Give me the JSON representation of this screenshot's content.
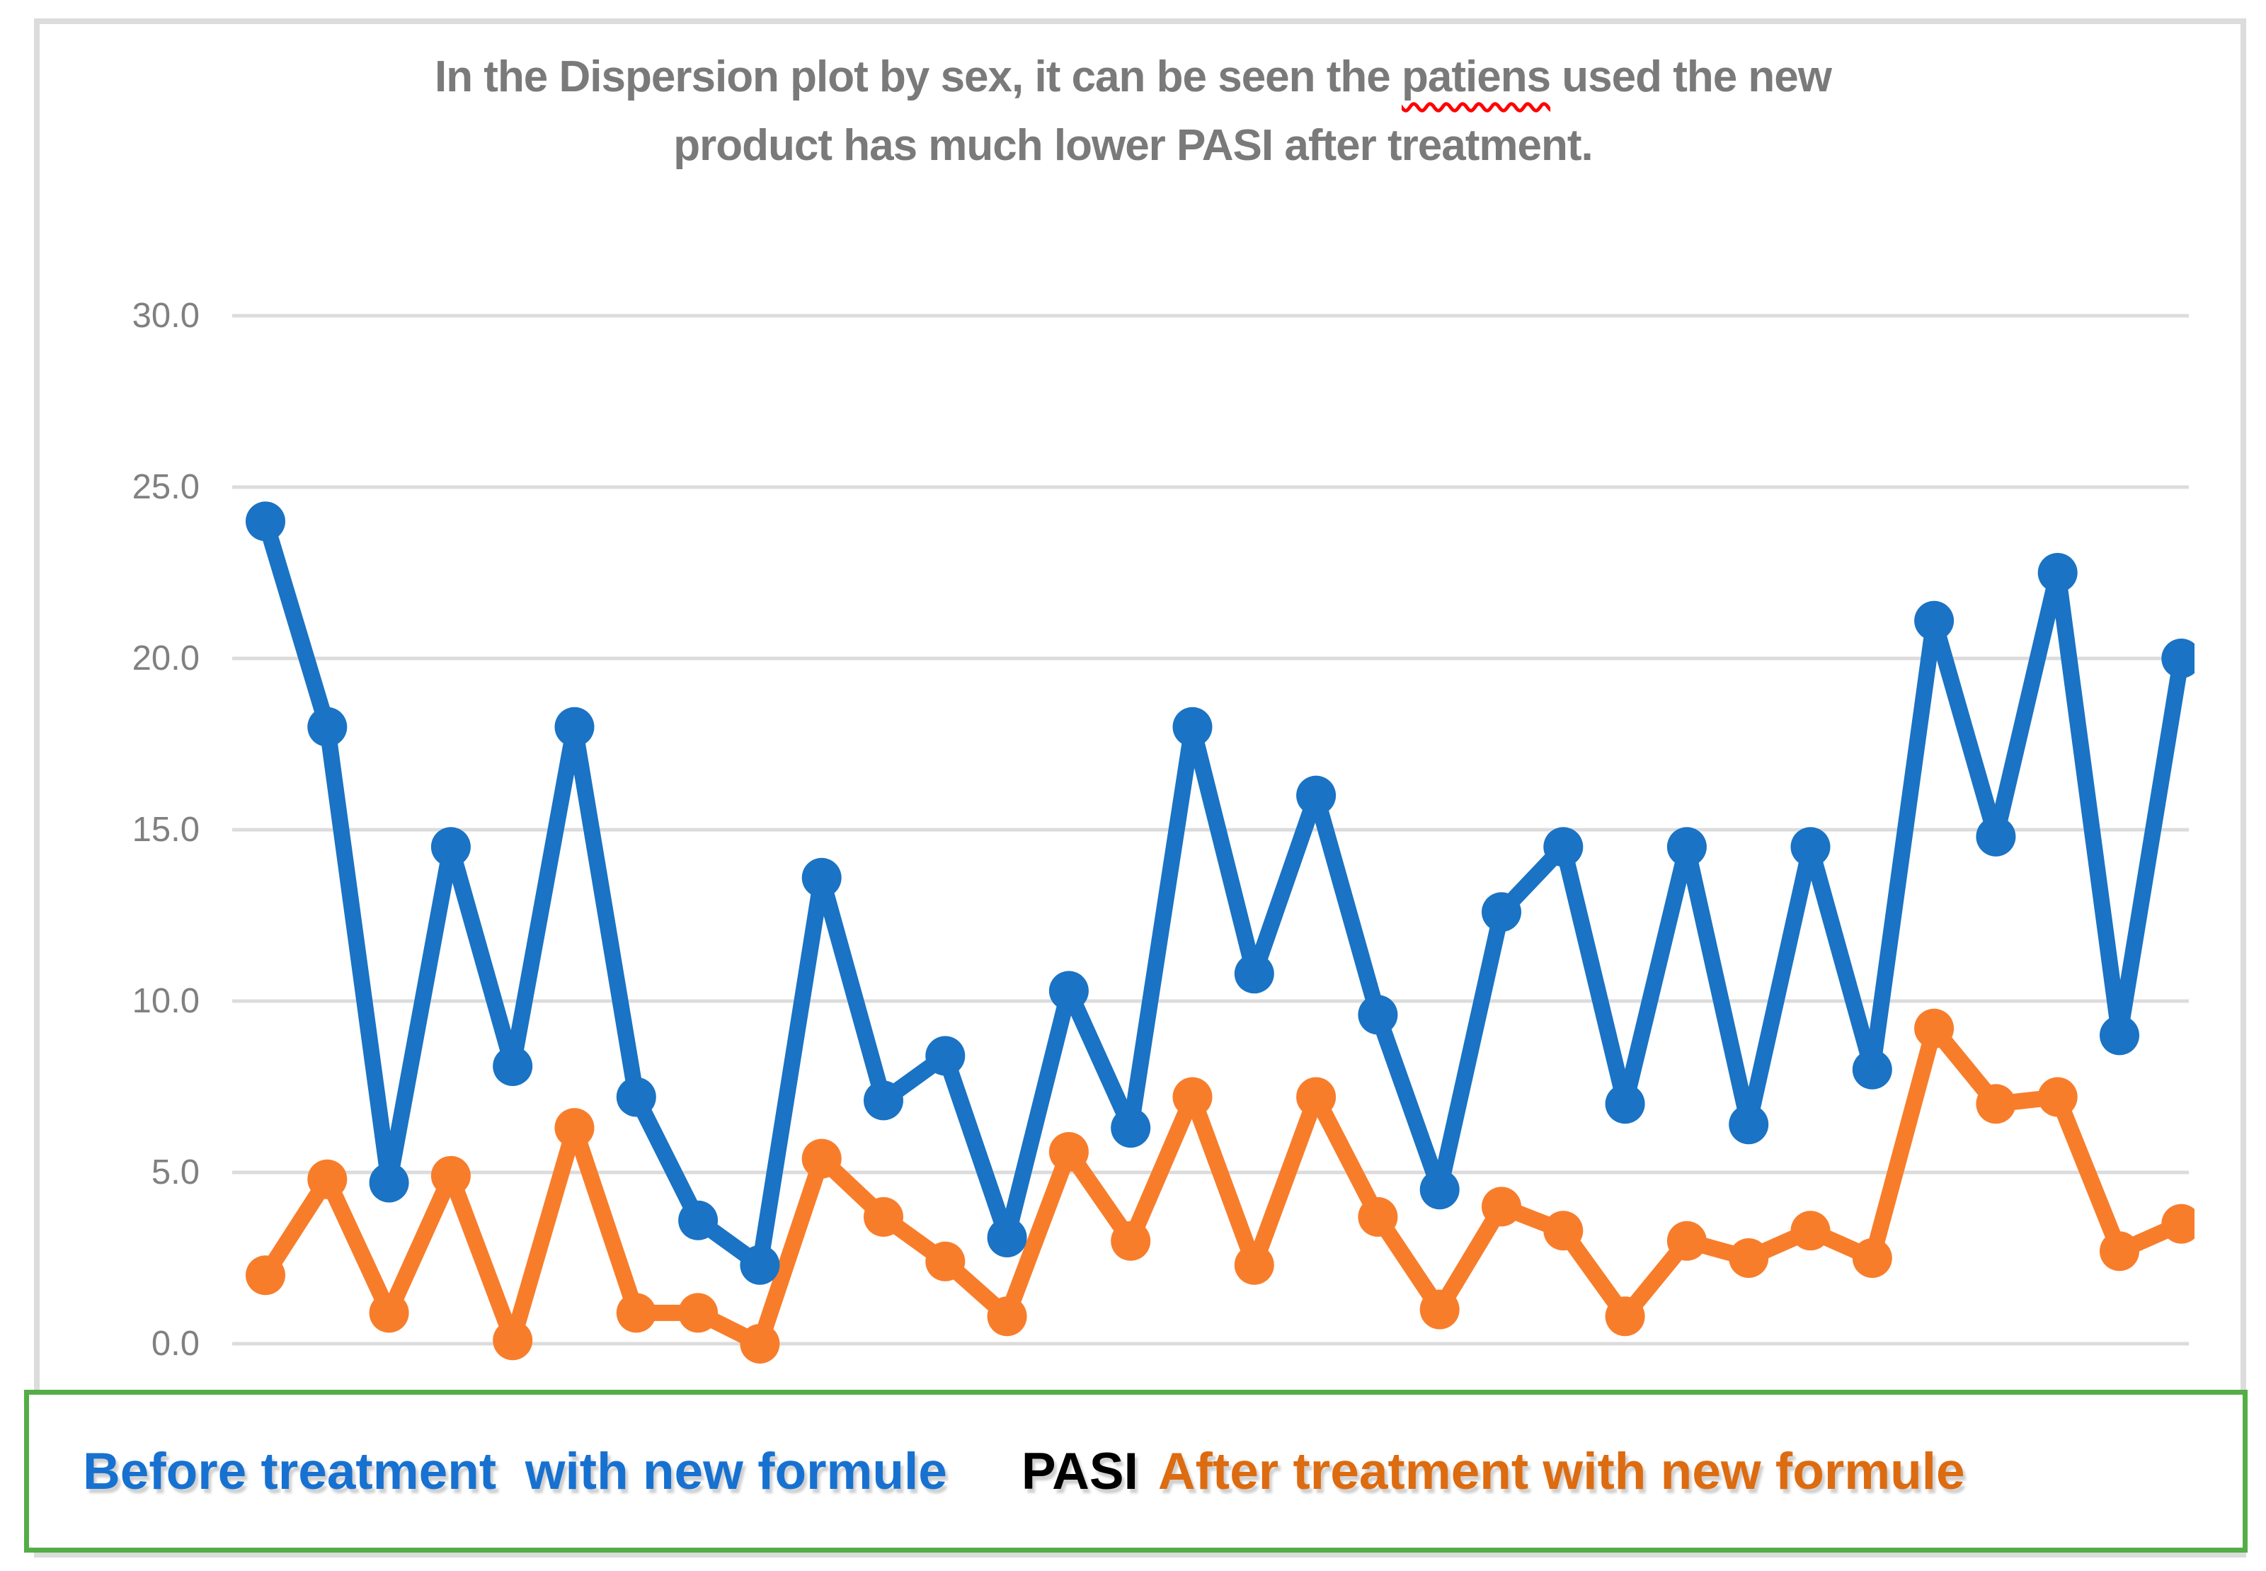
{
  "title": {
    "line1_before": "In the Dispersion plot by sex, it can be seen the ",
    "misspelled_word": "patiens",
    "line1_after": " used the new",
    "line2": "product has much lower PASI after treatment."
  },
  "y_axis": {
    "tick_labels": [
      "30.0",
      "25.0",
      "20.0",
      "15.0",
      "10.0",
      "5.0",
      "0.0"
    ]
  },
  "legend": {
    "before_label": "Before treatment  with new formule",
    "center_label": "PASI",
    "after_label": "After treatment with new formule"
  },
  "colors": {
    "before_line": "#1a73c4",
    "after_line": "#f87d2b",
    "legend_before_text": "#1771d0",
    "legend_pasi_text": "#000000",
    "legend_after_text": "#dd6b10",
    "legend_border": "#54ad47",
    "gridline": "#dcdcdc",
    "axis_label": "#808080",
    "title_text": "#7a7a7a",
    "spellcheck_underline": "#ff0000",
    "page_border": "#dcdcdc"
  },
  "chart_data": {
    "type": "line",
    "title": "In the Dispersion plot by sex, it can be seen the patiens used the new product has much lower PASI after treatment.",
    "xlabel": "",
    "ylabel": "PASI",
    "x_axis_labels_visible": false,
    "n_points": 32,
    "ylim": [
      0,
      30
    ],
    "yticks": [
      30,
      25,
      20,
      15,
      10,
      5,
      0
    ],
    "ytick_labels": [
      "30.0",
      "25.0",
      "20.0",
      "15.0",
      "10.0",
      "5.0",
      "0.0"
    ],
    "grid": true,
    "legend_position": "bottom",
    "series": [
      {
        "name": "Before treatment with new formule",
        "color": "#1a73c4",
        "values": [
          24.0,
          18.0,
          4.7,
          14.5,
          8.1,
          18.0,
          7.2,
          3.6,
          2.3,
          13.6,
          7.1,
          8.4,
          3.1,
          10.3,
          6.3,
          18.0,
          10.8,
          16.0,
          9.6,
          4.5,
          12.6,
          14.5,
          7.0,
          14.5,
          6.4,
          14.5,
          8.0,
          21.1,
          14.8,
          22.5,
          9.0,
          20.0
        ]
      },
      {
        "name": "After treatment with new formule",
        "color": "#f87d2b",
        "values": [
          2.0,
          4.8,
          0.9,
          4.9,
          0.1,
          6.3,
          0.9,
          0.9,
          0.0,
          5.4,
          3.7,
          2.4,
          0.8,
          5.6,
          3.0,
          7.2,
          2.3,
          7.2,
          3.7,
          1.0,
          4.0,
          3.3,
          0.8,
          3.0,
          2.5,
          3.3,
          2.5,
          9.2,
          7.0,
          7.2,
          2.7,
          3.5
        ]
      }
    ]
  }
}
